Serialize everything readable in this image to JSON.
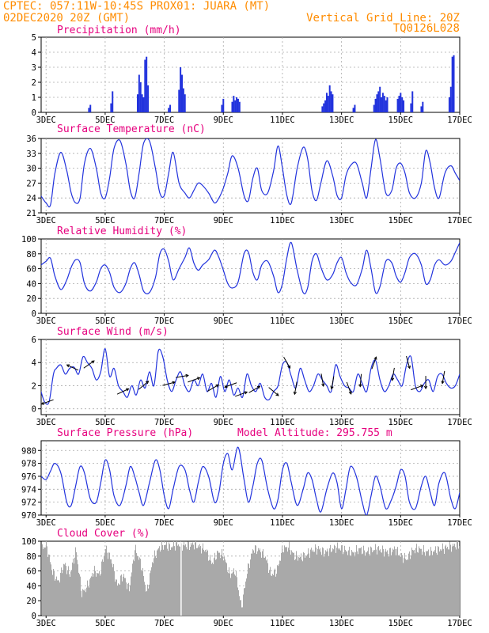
{
  "header": {
    "line1_left": "CPTEC:  057:11W-10:45S  PROX01: JUARA (MT)",
    "line2_left": "02DEC2020 20Z (GMT)",
    "line1_right": "Vertical Grid Line: 20Z",
    "line2_right": "TQ0126L028"
  },
  "colors": {
    "header": "#ff8c00",
    "title": "#e6007e",
    "series": "#2233dd",
    "bar": "#2233dd",
    "cloud": "#a9a9a9",
    "grid": "#aaaaaa"
  },
  "x_axis": {
    "start": "02DEC2020 20Z",
    "end": "17DEC2020 00Z",
    "ticks": [
      {
        "label": "3DEC",
        "day": 3
      },
      {
        "label": "5DEC",
        "day": 5
      },
      {
        "label": "7DEC",
        "day": 7
      },
      {
        "label": "9DEC",
        "day": 9
      },
      {
        "label": "11DEC",
        "day": 11
      },
      {
        "label": "13DEC",
        "day": 13
      },
      {
        "label": "15DEC",
        "day": 15
      },
      {
        "label": "17DEC",
        "day": 17
      }
    ]
  },
  "chart_data": [
    {
      "id": "precip",
      "type": "bar",
      "title": "Precipitation (mm/h)",
      "ylim": [
        0,
        5
      ],
      "yticks": [
        0,
        1,
        2,
        3,
        4,
        5
      ],
      "x_unit": "day of December 2020",
      "x": [
        4.45,
        4.5,
        5.2,
        5.25,
        6.1,
        6.15,
        6.2,
        6.25,
        6.3,
        6.35,
        6.4,
        6.45,
        7.15,
        7.2,
        7.5,
        7.55,
        7.6,
        7.65,
        7.7,
        8.95,
        9.0,
        9.3,
        9.35,
        9.4,
        9.45,
        9.5,
        9.55,
        12.35,
        12.4,
        12.45,
        12.5,
        12.55,
        12.6,
        12.65,
        12.7,
        13.4,
        13.45,
        14.1,
        14.15,
        14.2,
        14.25,
        14.3,
        14.35,
        14.4,
        14.45,
        14.5,
        14.55,
        14.9,
        14.95,
        15.0,
        15.05,
        15.1,
        15.35,
        15.4,
        15.7,
        15.75,
        16.65,
        16.7,
        16.75,
        16.8
      ],
      "values": [
        0.3,
        0.5,
        0.6,
        1.4,
        1.2,
        2.5,
        2.0,
        1.2,
        1.0,
        3.5,
        3.7,
        1.8,
        0.3,
        0.5,
        1.5,
        3.0,
        2.5,
        1.6,
        1.2,
        0.5,
        0.9,
        0.7,
        1.1,
        0.8,
        1.0,
        0.9,
        0.7,
        0.4,
        0.6,
        0.8,
        1.3,
        1.1,
        1.8,
        1.4,
        1.2,
        0.3,
        0.5,
        0.5,
        0.9,
        1.2,
        1.4,
        1.7,
        1.0,
        1.3,
        1.1,
        0.8,
        1.0,
        0.9,
        1.1,
        1.3,
        1.0,
        0.8,
        0.6,
        1.4,
        0.4,
        0.7,
        1.0,
        1.7,
        3.7,
        3.8
      ]
    },
    {
      "id": "temp",
      "type": "line",
      "title": "Surface Temperature (nC)",
      "ylim": [
        21,
        36
      ],
      "yticks": [
        21,
        24,
        27,
        30,
        33,
        36
      ],
      "x_unit": "day of December 2020",
      "x": [
        2.83,
        3.0,
        3.15,
        3.3,
        3.5,
        3.7,
        3.85,
        4.0,
        4.15,
        4.3,
        4.5,
        4.7,
        4.85,
        5.0,
        5.15,
        5.3,
        5.5,
        5.7,
        5.85,
        6.0,
        6.15,
        6.3,
        6.5,
        6.7,
        6.85,
        7.0,
        7.15,
        7.3,
        7.5,
        7.7,
        7.85,
        8.0,
        8.15,
        8.3,
        8.5,
        8.7,
        8.85,
        9.0,
        9.15,
        9.3,
        9.5,
        9.7,
        9.85,
        10.0,
        10.15,
        10.3,
        10.5,
        10.7,
        10.85,
        11.0,
        11.15,
        11.3,
        11.5,
        11.7,
        11.85,
        12.0,
        12.15,
        12.3,
        12.5,
        12.7,
        12.85,
        13.0,
        13.15,
        13.3,
        13.5,
        13.7,
        13.85,
        14.0,
        14.15,
        14.3,
        14.5,
        14.7,
        14.85,
        15.0,
        15.15,
        15.3,
        15.5,
        15.7,
        15.85,
        16.0,
        16.15,
        16.3,
        16.5,
        16.7,
        16.85,
        17.0
      ],
      "values": [
        24.4,
        23.0,
        22.6,
        29.0,
        33.2,
        29.5,
        25.0,
        23.0,
        24.0,
        31.0,
        34.0,
        30.0,
        25.0,
        24.0,
        28.0,
        34.0,
        35.6,
        31.0,
        25.5,
        24.0,
        29.0,
        35.0,
        35.5,
        30.0,
        25.0,
        24.5,
        29.0,
        33.2,
        27.0,
        25.0,
        24.0,
        25.5,
        27.0,
        26.5,
        25.0,
        23.0,
        24.0,
        26.0,
        29.0,
        32.5,
        30.0,
        24.5,
        23.5,
        28.0,
        30.0,
        25.5,
        25.0,
        29.5,
        34.5,
        30.0,
        24.5,
        23.0,
        30.0,
        34.2,
        32.0,
        25.5,
        23.5,
        27.0,
        31.5,
        28.5,
        24.5,
        24.0,
        28.5,
        30.5,
        31.0,
        27.0,
        24.0,
        30.0,
        35.8,
        32.0,
        25.0,
        25.5,
        30.0,
        31.0,
        29.0,
        25.0,
        24.0,
        27.0,
        33.5,
        31.0,
        26.0,
        24.0,
        29.0,
        30.5,
        29.0,
        27.5
      ]
    },
    {
      "id": "rh",
      "type": "line",
      "title": "Relative Humidity (%)",
      "ylim": [
        0,
        100
      ],
      "yticks": [
        0,
        20,
        40,
        60,
        80,
        100
      ],
      "x_unit": "day of December 2020",
      "x": [
        2.83,
        3.0,
        3.15,
        3.3,
        3.5,
        3.7,
        3.85,
        4.0,
        4.15,
        4.3,
        4.5,
        4.7,
        4.85,
        5.0,
        5.15,
        5.3,
        5.5,
        5.7,
        5.85,
        6.0,
        6.15,
        6.3,
        6.5,
        6.7,
        6.85,
        7.0,
        7.15,
        7.3,
        7.5,
        7.7,
        7.85,
        8.0,
        8.15,
        8.3,
        8.5,
        8.7,
        8.85,
        9.0,
        9.15,
        9.3,
        9.5,
        9.7,
        9.85,
        10.0,
        10.15,
        10.3,
        10.5,
        10.7,
        10.85,
        11.0,
        11.15,
        11.3,
        11.5,
        11.7,
        11.85,
        12.0,
        12.15,
        12.3,
        12.5,
        12.7,
        12.85,
        13.0,
        13.15,
        13.3,
        13.5,
        13.7,
        13.85,
        14.0,
        14.15,
        14.3,
        14.5,
        14.7,
        14.85,
        15.0,
        15.15,
        15.3,
        15.5,
        15.7,
        15.85,
        16.0,
        16.15,
        16.3,
        16.5,
        16.7,
        16.85,
        17.0
      ],
      "values": [
        65,
        70,
        74,
        50,
        32,
        45,
        62,
        72,
        68,
        40,
        30,
        42,
        60,
        65,
        55,
        35,
        28,
        40,
        60,
        68,
        52,
        30,
        28,
        48,
        80,
        86,
        70,
        45,
        60,
        75,
        88,
        68,
        58,
        65,
        72,
        85,
        75,
        58,
        40,
        34,
        42,
        80,
        82,
        55,
        45,
        65,
        70,
        50,
        28,
        40,
        75,
        95,
        58,
        28,
        34,
        70,
        80,
        62,
        45,
        52,
        68,
        75,
        55,
        42,
        38,
        60,
        85,
        60,
        28,
        36,
        70,
        68,
        50,
        42,
        55,
        75,
        80,
        65,
        40,
        45,
        65,
        72,
        65,
        70,
        82,
        95
      ]
    },
    {
      "id": "wind",
      "type": "line",
      "title": "Surface Wind (m/s)",
      "ylim": [
        -0.5,
        6
      ],
      "yticks": [
        0,
        2,
        4,
        6
      ],
      "x_unit": "day of December 2020",
      "x": [
        2.83,
        2.95,
        3.1,
        3.25,
        3.35,
        3.5,
        3.65,
        3.8,
        3.95,
        4.1,
        4.25,
        4.4,
        4.55,
        4.7,
        4.85,
        5.0,
        5.15,
        5.3,
        5.45,
        5.6,
        5.75,
        5.9,
        6.05,
        6.2,
        6.35,
        6.5,
        6.65,
        6.8,
        6.95,
        7.1,
        7.25,
        7.4,
        7.55,
        7.7,
        7.85,
        8.0,
        8.15,
        8.3,
        8.45,
        8.6,
        8.75,
        8.9,
        9.05,
        9.2,
        9.35,
        9.5,
        9.65,
        9.8,
        9.95,
        10.1,
        10.25,
        10.4,
        10.55,
        10.7,
        10.85,
        11.0,
        11.15,
        11.3,
        11.45,
        11.6,
        11.75,
        11.9,
        12.05,
        12.2,
        12.35,
        12.5,
        12.65,
        12.8,
        12.95,
        13.1,
        13.25,
        13.4,
        13.55,
        13.7,
        13.85,
        14.0,
        14.15,
        14.3,
        14.45,
        14.6,
        14.75,
        14.9,
        15.05,
        15.2,
        15.35,
        15.5,
        15.65,
        15.8,
        15.95,
        16.1,
        16.25,
        16.4,
        16.55,
        16.7,
        16.85,
        17.0
      ],
      "values": [
        1.5,
        0.6,
        0.6,
        3.0,
        3.5,
        3.8,
        3.0,
        3.5,
        3.6,
        3.0,
        4.5,
        4.0,
        3.5,
        2.5,
        3.2,
        5.2,
        2.8,
        3.5,
        2.0,
        1.5,
        1.0,
        2.0,
        1.2,
        2.5,
        1.8,
        3.2,
        2.0,
        5.0,
        4.5,
        2.5,
        1.5,
        2.5,
        3.2,
        2.0,
        1.5,
        2.5,
        2.0,
        3.0,
        1.5,
        2.2,
        1.0,
        2.8,
        1.5,
        2.5,
        1.2,
        1.8,
        1.0,
        3.0,
        2.0,
        1.5,
        2.2,
        1.0,
        0.8,
        1.5,
        2.0,
        3.8,
        4.0,
        2.8,
        1.8,
        3.5,
        2.5,
        1.5,
        2.0,
        3.0,
        2.5,
        2.0,
        1.5,
        3.8,
        2.8,
        2.0,
        1.8,
        1.5,
        3.0,
        2.2,
        1.5,
        3.5,
        4.2,
        2.5,
        1.5,
        2.0,
        3.0,
        2.5,
        2.0,
        3.8,
        4.5,
        2.0,
        1.5,
        2.2,
        2.5,
        1.5,
        2.8,
        3.0,
        2.2,
        1.8,
        2.0,
        3.0
      ]
    },
    {
      "id": "pres",
      "type": "line",
      "title": "Surface Pressure (hPa)",
      "annotation": "Model Altitude: 295.755 m",
      "ylim": [
        970,
        981.5
      ],
      "yticks": [
        970,
        972,
        974,
        976,
        978,
        980
      ],
      "x_unit": "day of December 2020",
      "x": [
        2.83,
        3.0,
        3.15,
        3.3,
        3.5,
        3.7,
        3.85,
        4.0,
        4.15,
        4.3,
        4.5,
        4.7,
        4.85,
        5.0,
        5.15,
        5.3,
        5.5,
        5.7,
        5.85,
        6.0,
        6.15,
        6.3,
        6.5,
        6.7,
        6.85,
        7.0,
        7.15,
        7.3,
        7.5,
        7.7,
        7.85,
        8.0,
        8.15,
        8.3,
        8.5,
        8.7,
        8.85,
        9.0,
        9.15,
        9.3,
        9.5,
        9.7,
        9.85,
        10.0,
        10.15,
        10.3,
        10.5,
        10.7,
        10.85,
        11.0,
        11.15,
        11.3,
        11.5,
        11.7,
        11.85,
        12.0,
        12.15,
        12.3,
        12.5,
        12.7,
        12.85,
        13.0,
        13.15,
        13.3,
        13.5,
        13.7,
        13.85,
        14.0,
        14.15,
        14.3,
        14.5,
        14.7,
        14.85,
        15.0,
        15.15,
        15.3,
        15.5,
        15.7,
        15.85,
        16.0,
        16.15,
        16.3,
        16.5,
        16.7,
        16.85,
        17.0
      ],
      "values": [
        976.0,
        975.5,
        976.8,
        978.0,
        976.5,
        972.0,
        971.5,
        974.5,
        977.5,
        976.5,
        972.5,
        972.0,
        975.0,
        978.5,
        977.0,
        973.0,
        971.5,
        974.5,
        977.5,
        976.0,
        973.5,
        971.5,
        975.0,
        978.5,
        977.0,
        973.0,
        971.0,
        974.0,
        977.5,
        977.0,
        974.0,
        972.0,
        975.0,
        977.5,
        976.0,
        972.0,
        973.5,
        978.0,
        979.5,
        977.0,
        980.5,
        975.5,
        972.0,
        974.5,
        978.0,
        978.5,
        974.0,
        971.0,
        972.5,
        977.0,
        978.0,
        975.0,
        971.5,
        974.0,
        976.5,
        975.5,
        972.5,
        970.5,
        974.0,
        976.5,
        975.0,
        971.0,
        974.0,
        977.5,
        976.0,
        972.0,
        970.0,
        973.0,
        976.0,
        974.5,
        971.0,
        972.5,
        974.5,
        977.0,
        976.0,
        972.0,
        971.0,
        974.5,
        976.0,
        973.5,
        971.5,
        975.0,
        976.5,
        972.5,
        971.0,
        973.5
      ]
    },
    {
      "id": "cloud",
      "type": "area",
      "title": "Cloud Cover (%)",
      "ylim": [
        0,
        100
      ],
      "yticks": [
        0,
        20,
        40,
        60,
        80,
        100
      ],
      "x_unit": "day of December 2020",
      "x": [
        2.83,
        3.0,
        3.2,
        3.4,
        3.6,
        3.8,
        4.0,
        4.2,
        4.4,
        4.6,
        4.8,
        5.0,
        5.2,
        5.4,
        5.6,
        5.8,
        6.0,
        6.2,
        6.4,
        6.6,
        6.8,
        7.0,
        7.2,
        7.4,
        7.6,
        7.8,
        8.0,
        8.2,
        8.4,
        8.6,
        8.8,
        9.0,
        9.2,
        9.4,
        9.6,
        9.8,
        10.0,
        10.2,
        10.4,
        10.6,
        10.8,
        11.0,
        11.2,
        11.4,
        11.6,
        11.8,
        12.0,
        12.2,
        12.4,
        12.6,
        12.8,
        13.0,
        13.2,
        13.4,
        13.6,
        13.8,
        14.0,
        14.2,
        14.4,
        14.6,
        14.8,
        15.0,
        15.2,
        15.4,
        15.6,
        15.8,
        16.0,
        16.2,
        16.4,
        16.6,
        16.8,
        17.0
      ],
      "values": [
        90,
        95,
        60,
        45,
        70,
        55,
        88,
        30,
        40,
        60,
        55,
        90,
        75,
        40,
        55,
        35,
        90,
        70,
        30,
        75,
        90,
        95,
        92,
        96,
        95,
        94,
        96,
        92,
        88,
        70,
        85,
        80,
        55,
        60,
        10,
        60,
        90,
        88,
        80,
        55,
        60,
        90,
        92,
        80,
        78,
        82,
        88,
        90,
        85,
        88,
        92,
        90,
        86,
        84,
        90,
        85,
        88,
        90,
        87,
        85,
        90,
        80,
        76,
        88,
        90,
        86,
        85,
        88,
        90,
        92,
        94,
        96
      ]
    }
  ],
  "wind_arrows": {
    "x": [
      3.05,
      3.9,
      4.45,
      5.6,
      6.3,
      7.15,
      7.6,
      8.0,
      8.65,
      9.25,
      9.6,
      10.05,
      10.7,
      11.15,
      11.45,
      12.35,
      12.7,
      13.25,
      13.65,
      14.1,
      14.75,
      15.25,
      15.55,
      15.85,
      16.45
    ],
    "angle_deg": [
      200,
      155,
      35,
      25,
      40,
      15,
      10,
      20,
      30,
      200,
      20,
      30,
      320,
      300,
      260,
      280,
      260,
      290,
      265,
      70,
      260,
      285,
      20,
      270,
      260
    ]
  }
}
